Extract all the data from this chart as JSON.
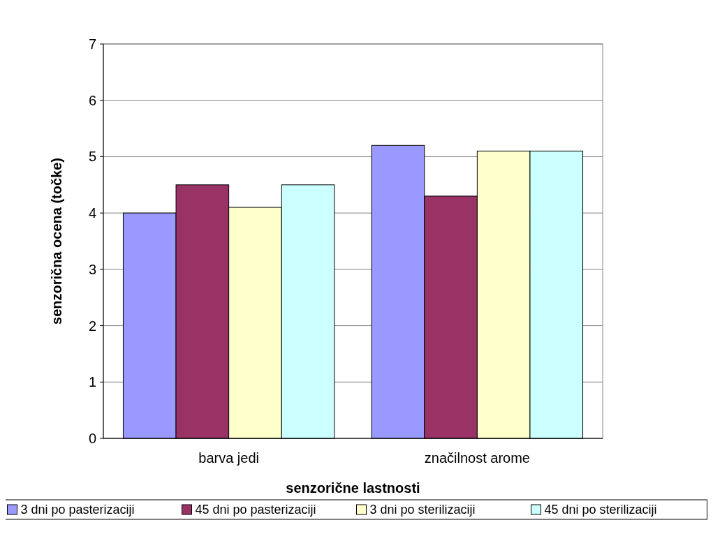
{
  "chart_data": {
    "type": "bar",
    "xlabel": "senzorične lastnosti",
    "ylabel": "senzorična ocena (točke)",
    "categories": [
      "barva jedi",
      "značilnost arome"
    ],
    "series": [
      {
        "name": "3 dni po pasterizaciji",
        "color": "#9999ff",
        "values": [
          4.0,
          5.2
        ]
      },
      {
        "name": "45 dni po pasterizaciji",
        "color": "#993366",
        "values": [
          4.5,
          4.3
        ]
      },
      {
        "name": "3 dni po sterilizaciji",
        "color": "#ffffcc",
        "values": [
          4.1,
          5.1
        ]
      },
      {
        "name": "45 dni po sterilizaciji",
        "color": "#ccffff",
        "values": [
          4.5,
          5.1
        ]
      }
    ],
    "ylim": [
      0,
      7
    ],
    "yticks": [
      0,
      1,
      2,
      3,
      4,
      5,
      6,
      7
    ],
    "grid": "y",
    "legend": "bottom"
  }
}
